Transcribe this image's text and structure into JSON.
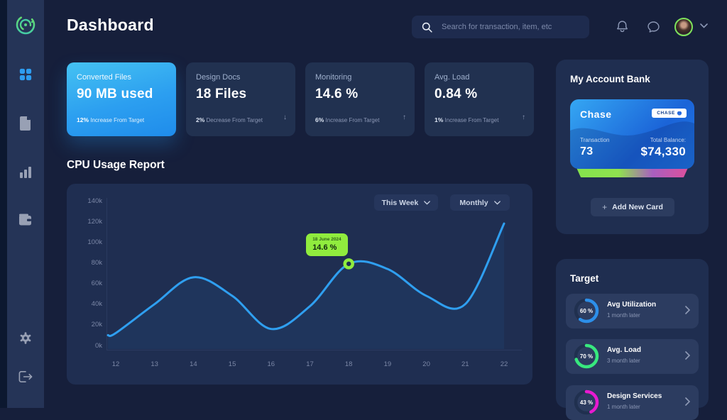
{
  "header": {
    "title": "Dashboard",
    "search_placeholder": "Search for transaction, item, etc"
  },
  "sidebar": {
    "items": [
      {
        "name": "brand-logo"
      },
      {
        "name": "dashboard",
        "icon": "dashboard-grid-icon",
        "active": true
      },
      {
        "name": "files",
        "icon": "document-icon"
      },
      {
        "name": "analytics",
        "icon": "bar-chart-icon"
      },
      {
        "name": "wallet",
        "icon": "wallet-icon"
      },
      {
        "name": "settings",
        "icon": "gear-icon"
      },
      {
        "name": "logout",
        "icon": "logout-icon"
      }
    ]
  },
  "stat_cards": [
    {
      "label": "Converted Files",
      "value": "90 MB used",
      "delta": "12%",
      "delta_text": "Increase From Target",
      "arrow": "",
      "highlight": true
    },
    {
      "label": "Design Docs",
      "value": "18 Files",
      "delta": "2%",
      "delta_text": "Decrease From Target",
      "arrow": "↓",
      "highlight": false
    },
    {
      "label": "Monitoring",
      "value": "14.6 %",
      "delta": "6%",
      "delta_text": "Increase From Target",
      "arrow": "↑",
      "highlight": false
    },
    {
      "label": "Avg. Load",
      "value": "0.84 %",
      "delta": "1%",
      "delta_text": "Increase From Target",
      "arrow": "↑",
      "highlight": false
    }
  ],
  "cpu_section": {
    "title": "CPU Usage Report",
    "filters": [
      {
        "label": "This Week"
      },
      {
        "label": "Monthly"
      }
    ]
  },
  "chart_data": {
    "type": "line",
    "title": "CPU Usage Report",
    "x_ticks": [
      12,
      13,
      14,
      15,
      16,
      17,
      18,
      19,
      20,
      21,
      22
    ],
    "y_tick_labels": [
      "140k",
      "120k",
      "100k",
      "80k",
      "60k",
      "40k",
      "20k",
      "0k"
    ],
    "y_tick_values": [
      140000,
      120000,
      100000,
      80000,
      60000,
      40000,
      20000,
      0
    ],
    "xlim": [
      11.8,
      22
    ],
    "ylim": [
      0,
      140000
    ],
    "grid": false,
    "legend": "none",
    "series": [
      {
        "name": "CPU Usage",
        "color": "#2f9ff0",
        "points": [
          [
            11.8,
            10000
          ],
          [
            12,
            12000
          ],
          [
            13,
            40000
          ],
          [
            14,
            66000
          ],
          [
            15,
            48000
          ],
          [
            16,
            16000
          ],
          [
            17,
            38000
          ],
          [
            18,
            79000
          ],
          [
            19,
            74000
          ],
          [
            20,
            48000
          ],
          [
            21,
            40000
          ],
          [
            22,
            118000
          ]
        ]
      }
    ],
    "marker": {
      "x": 18,
      "y": 79000
    },
    "tooltip": {
      "date": "18 June 2024",
      "value": "14.6 %"
    }
  },
  "bank": {
    "title": "My Account Bank",
    "card": {
      "bank_name": "Chase",
      "badge_text": "CHASE",
      "transaction_label": "Transaction",
      "transaction_value": "73",
      "balance_label": "Total Balance:",
      "balance_value": "$74,330"
    },
    "add_card_plus": "+",
    "add_card_label": "Add New Card"
  },
  "target": {
    "title": "Target",
    "items": [
      {
        "percent_label": "60 %",
        "value": 60,
        "color": "#2d8fe9",
        "title": "Avg Utilization",
        "subtitle": "1 month later"
      },
      {
        "percent_label": "70 %",
        "value": 70,
        "color": "#38e87e",
        "title": "Avg. Load",
        "subtitle": "3 month later"
      },
      {
        "percent_label": "43 %",
        "value": 43,
        "color": "#e81ad0",
        "title": "Design Services",
        "subtitle": "1 month later"
      }
    ]
  },
  "colors": {
    "accent_blue": "#2f9ff0",
    "tooltip_green": "#90ec3e",
    "panel_bg": "#1f2e51",
    "sidebar_bg": "#253457",
    "main_bg": "#161f3b"
  }
}
